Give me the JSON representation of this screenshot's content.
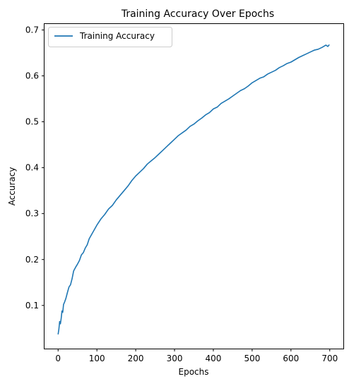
{
  "chart_data": {
    "type": "line",
    "title": "Training Accuracy Over Epochs",
    "xlabel": "Epochs",
    "ylabel": "Accuracy",
    "xlim": [
      -35,
      735
    ],
    "ylim": [
      0.006,
      0.713
    ],
    "xticks": [
      0,
      100,
      200,
      300,
      400,
      500,
      600,
      700
    ],
    "yticks": [
      0.1,
      0.2,
      0.3,
      0.4,
      0.5,
      0.6,
      0.7
    ],
    "grid": false,
    "legend_position": "top-left",
    "series": [
      {
        "name": "Training Accuracy",
        "color": "#1f77b4",
        "x": [
          0,
          2,
          4,
          6,
          8,
          10,
          12,
          14,
          17,
          20,
          24,
          28,
          32,
          36,
          40,
          45,
          50,
          55,
          60,
          65,
          70,
          75,
          80,
          90,
          100,
          110,
          120,
          130,
          140,
          150,
          160,
          170,
          180,
          190,
          200,
          210,
          220,
          230,
          240,
          250,
          260,
          270,
          280,
          290,
          300,
          310,
          320,
          330,
          340,
          350,
          360,
          370,
          380,
          390,
          400,
          410,
          420,
          430,
          440,
          450,
          460,
          470,
          480,
          490,
          500,
          510,
          520,
          530,
          540,
          550,
          560,
          570,
          580,
          590,
          600,
          610,
          620,
          630,
          640,
          650,
          660,
          670,
          680,
          690,
          695,
          699
        ],
        "y": [
          0.037,
          0.048,
          0.065,
          0.06,
          0.072,
          0.088,
          0.085,
          0.102,
          0.108,
          0.115,
          0.128,
          0.14,
          0.145,
          0.158,
          0.175,
          0.183,
          0.19,
          0.198,
          0.21,
          0.215,
          0.225,
          0.232,
          0.245,
          0.26,
          0.275,
          0.288,
          0.298,
          0.31,
          0.318,
          0.33,
          0.34,
          0.35,
          0.36,
          0.372,
          0.382,
          0.39,
          0.398,
          0.408,
          0.415,
          0.422,
          0.43,
          0.438,
          0.446,
          0.454,
          0.462,
          0.47,
          0.476,
          0.482,
          0.49,
          0.495,
          0.502,
          0.508,
          0.515,
          0.52,
          0.528,
          0.532,
          0.54,
          0.545,
          0.55,
          0.556,
          0.562,
          0.568,
          0.572,
          0.578,
          0.585,
          0.59,
          0.595,
          0.598,
          0.604,
          0.608,
          0.612,
          0.618,
          0.622,
          0.627,
          0.63,
          0.635,
          0.64,
          0.644,
          0.648,
          0.652,
          0.656,
          0.658,
          0.662,
          0.667,
          0.664,
          0.668
        ]
      }
    ]
  }
}
